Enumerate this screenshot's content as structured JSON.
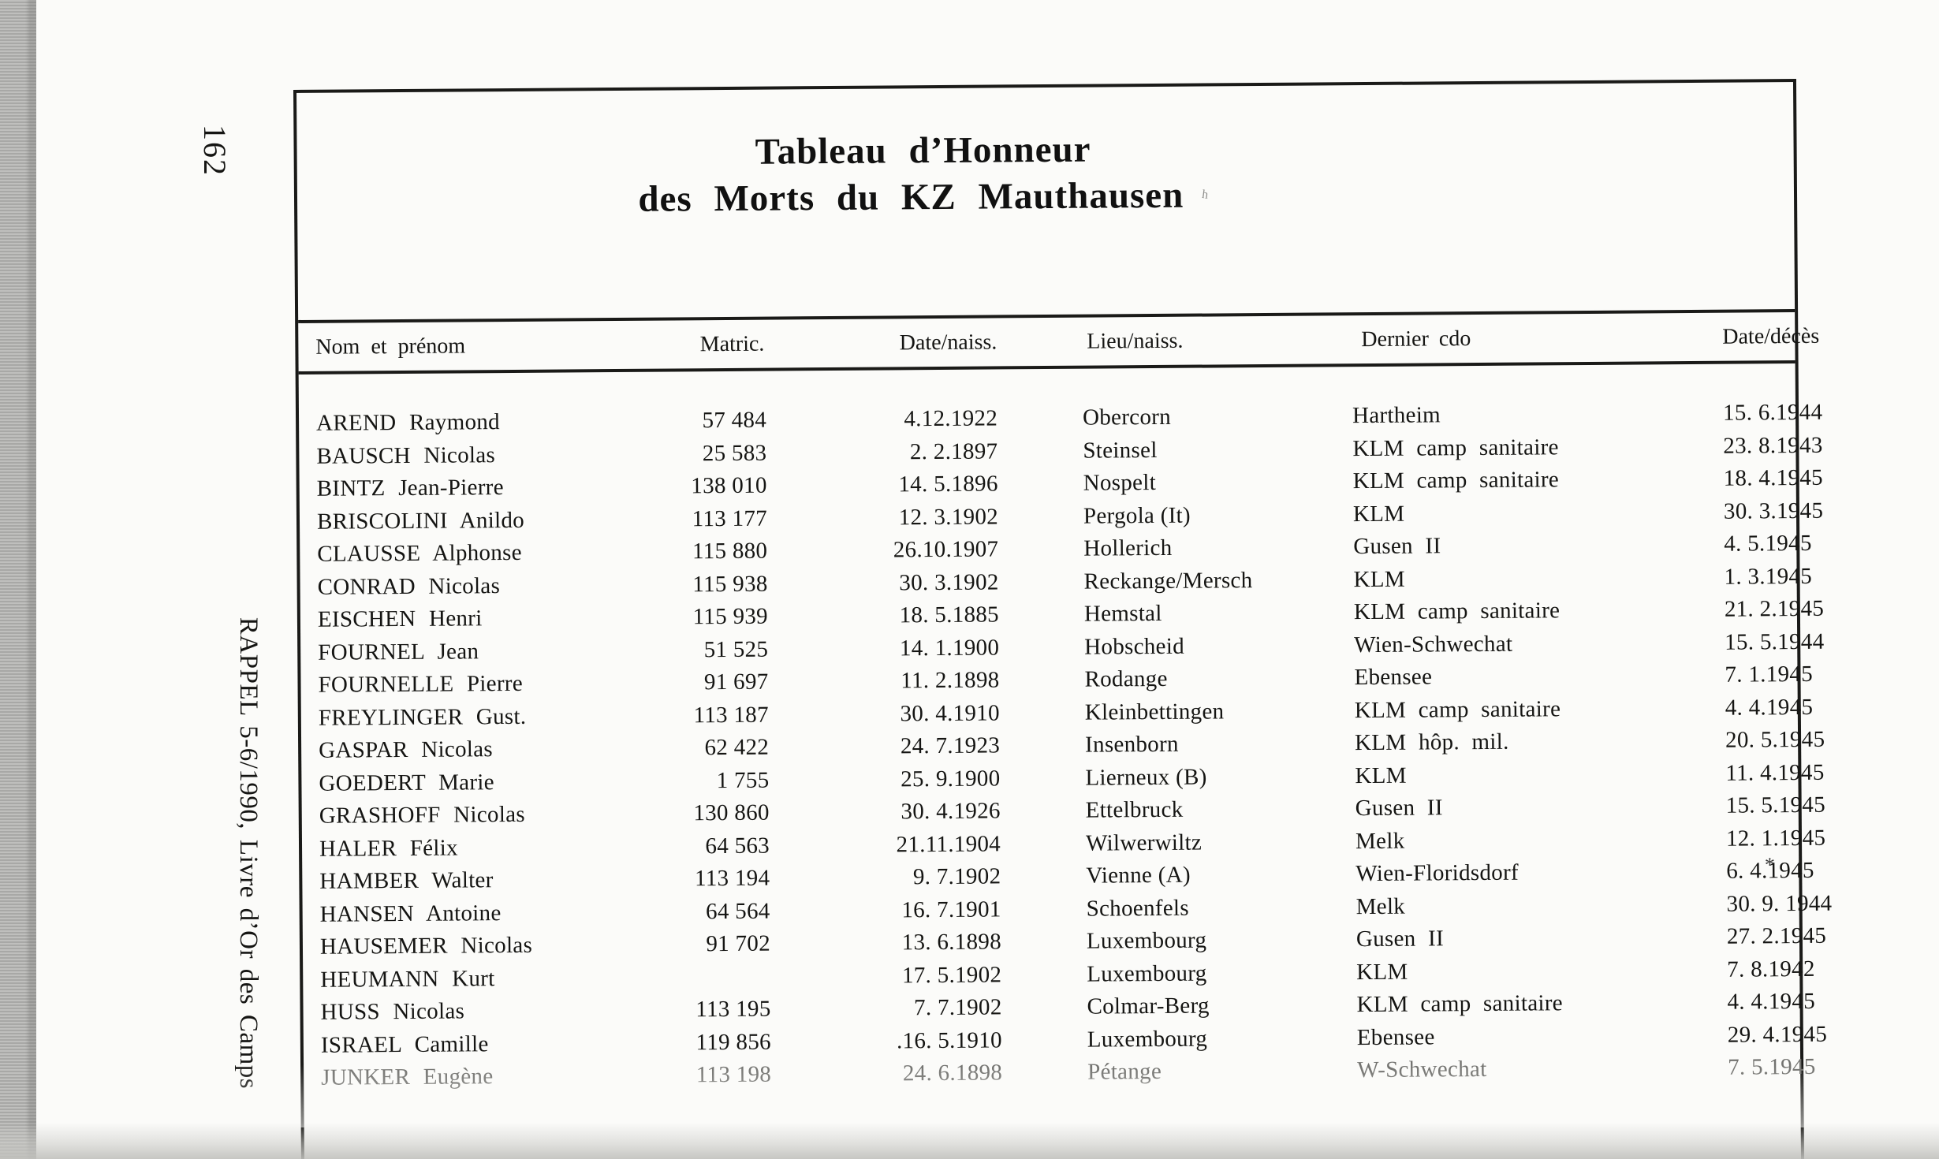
{
  "page": {
    "number": "162",
    "margin_caption": "RAPPEL 5-6/1990, Livre d’Or des Camps"
  },
  "table": {
    "title_line1": "Tableau d’Honneur",
    "title_line2": "des Morts du KZ Mauthausen",
    "title_mark": "ʰ",
    "columns": {
      "name": "Nom et prénom",
      "matric": "Matric.",
      "birth_date": "Date/naiss.",
      "birth_place": "Lieu/naiss.",
      "last_commando": "Dernier cdo",
      "death_date": "Date/décès"
    },
    "rows": [
      {
        "name": "AREND Raymond",
        "matric": "57 484",
        "birth_date": "4.12.1922",
        "birth_place": "Obercorn",
        "last_commando": "Hartheim",
        "death_date": "15. 6.1944"
      },
      {
        "name": "BAUSCH Nicolas",
        "matric": "25 583",
        "birth_date": "2. 2.1897",
        "birth_place": "Steinsel",
        "last_commando": "KLM camp sanitaire",
        "death_date": "23. 8.1943"
      },
      {
        "name": "BINTZ Jean-Pierre",
        "matric": "138 010",
        "birth_date": "14. 5.1896",
        "birth_place": "Nospelt",
        "last_commando": "KLM camp sanitaire",
        "death_date": "18. 4.1945"
      },
      {
        "name": "BRISCOLINI Anildo",
        "matric": "113 177",
        "birth_date": "12. 3.1902",
        "birth_place": "Pergola (It)",
        "last_commando": "KLM",
        "death_date": "30. 3.1945"
      },
      {
        "name": "CLAUSSE Alphonse",
        "matric": "115 880",
        "birth_date": "26.10.1907",
        "birth_place": "Hollerich",
        "last_commando": "Gusen II",
        "death_date": "4. 5.1945"
      },
      {
        "name": "CONRAD Nicolas",
        "matric": "115 938",
        "birth_date": "30. 3.1902",
        "birth_place": "Reckange/Mersch",
        "last_commando": "KLM",
        "death_date": "1. 3.1945"
      },
      {
        "name": "EISCHEN Henri",
        "matric": "115 939",
        "birth_date": "18. 5.1885",
        "birth_place": "Hemstal",
        "last_commando": "KLM camp sanitaire",
        "death_date": "21. 2.1945"
      },
      {
        "name": "FOURNEL Jean",
        "matric": "51 525",
        "birth_date": "14. 1.1900",
        "birth_place": "Hobscheid",
        "last_commando": "Wien-Schwechat",
        "death_date": "15. 5.1944"
      },
      {
        "name": "FOURNELLE Pierre",
        "matric": "91 697",
        "birth_date": "11. 2.1898",
        "birth_place": "Rodange",
        "last_commando": "Ebensee",
        "death_date": "7. 1.1945"
      },
      {
        "name": "FREYLINGER Gust.",
        "matric": "113 187",
        "birth_date": "30. 4.1910",
        "birth_place": "Kleinbettingen",
        "last_commando": "KLM camp sanitaire",
        "death_date": "4. 4.1945"
      },
      {
        "name": "GASPAR Nicolas",
        "matric": "62 422",
        "birth_date": "24. 7.1923",
        "birth_place": "Insenborn",
        "last_commando": "KLM hôp. mil.",
        "death_date": "20. 5.1945"
      },
      {
        "name": "GOEDERT Marie",
        "matric": "1 755",
        "birth_date": "25. 9.1900",
        "birth_place": "Lierneux (B)",
        "last_commando": "KLM",
        "death_date": "11. 4.1945"
      },
      {
        "name": "GRASHOFF Nicolas",
        "matric": "130 860",
        "birth_date": "30. 4.1926",
        "birth_place": "Ettelbruck",
        "last_commando": "Gusen II",
        "death_date": "15. 5.1945"
      },
      {
        "name": "HALER Félix",
        "matric": "64 563",
        "birth_date": "21.11.1904",
        "birth_place": "Wilwerwiltz",
        "last_commando": "Melk",
        "death_date": "12. 1.1945"
      },
      {
        "name": "HAMBER Walter",
        "matric": "113 194",
        "birth_date": "9. 7.1902",
        "birth_place": "Vienne (A)",
        "last_commando": "Wien-Floridsdorf",
        "death_date": "6. 4.1945",
        "death_note": "*"
      },
      {
        "name": "HANSEN Antoine",
        "matric": "64 564",
        "birth_date": "16. 7.1901",
        "birth_place": "Schoenfels",
        "last_commando": "Melk",
        "death_date": "30. 9. 1944"
      },
      {
        "name": "HAUSEMER Nicolas",
        "matric": "91 702",
        "birth_date": "13. 6.1898",
        "birth_place": "Luxembourg",
        "last_commando": "Gusen II",
        "death_date": "27. 2.1945"
      },
      {
        "name": "HEUMANN Kurt",
        "matric": "",
        "birth_date": "17. 5.1902",
        "birth_place": "Luxembourg",
        "last_commando": "KLM",
        "death_date": "7. 8.1942"
      },
      {
        "name": "HUSS Nicolas",
        "matric": "113 195",
        "birth_date": "7. 7.1902",
        "birth_place": "Colmar-Berg",
        "last_commando": "KLM camp sanitaire",
        "death_date": "4. 4.1945"
      },
      {
        "name": "ISRAEL Camille",
        "matric": "119 856",
        "birth_date": ".16. 5.1910",
        "birth_place": "Luxembourg",
        "last_commando": "Ebensee",
        "death_date": "29. 4.1945"
      },
      {
        "name": "JUNKER Eugène",
        "matric": "113 198",
        "birth_date": "24. 6.1898",
        "birth_place": "Pétange",
        "last_commando": "W-Schwechat",
        "death_date": "7. 5.1945",
        "faded": true
      }
    ]
  },
  "colors": {
    "ink": "#151513",
    "paper": "#fbfbf9",
    "scan_edge_gray": "#b0b0ae",
    "faded_row_ink": "#72726f"
  }
}
